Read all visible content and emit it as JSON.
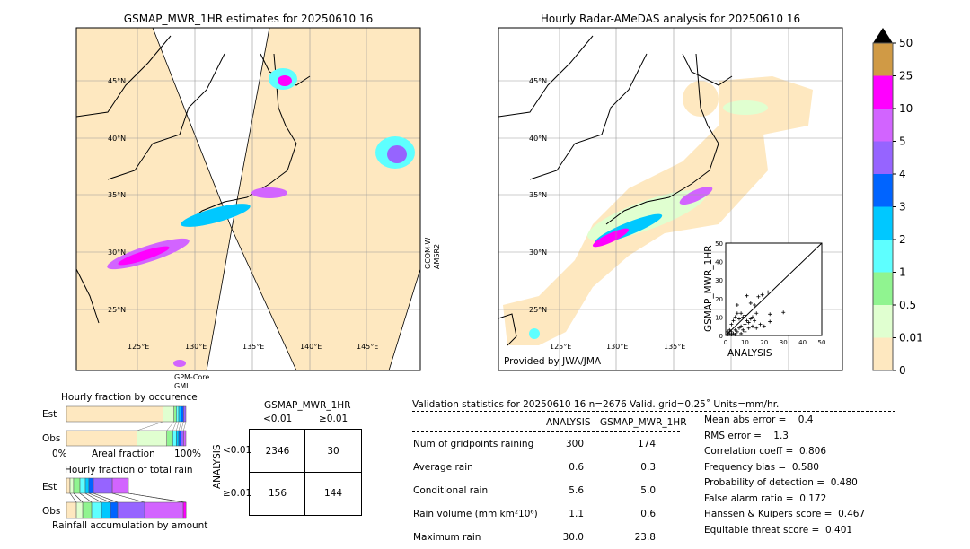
{
  "left_map": {
    "title": "GSMAP_MWR_1HR estimates for 20250610 16",
    "lat_labels": [
      "45°N",
      "40°N",
      "35°N",
      "30°N",
      "25°N"
    ],
    "lon_labels": [
      "125°E",
      "130°E",
      "135°E",
      "140°E",
      "145°E"
    ],
    "swath_label_bottom_1": "GPM-Core",
    "swath_label_bottom_2": "GMI",
    "swath_label_right_1": "GCOM-W",
    "swath_label_right_2": "AMSR2"
  },
  "right_map": {
    "title": "Hourly Radar-AMeDAS analysis for 20250610 16",
    "lat_labels": [
      "45°N",
      "40°N",
      "35°N",
      "30°N",
      "25°N"
    ],
    "lon_labels": [
      "125°E",
      "130°E",
      "135°E"
    ],
    "credit": "Provided by JWA/JMA"
  },
  "colorbar": {
    "ticks": [
      "0",
      "0.01",
      "0.5",
      "1",
      "2",
      "3",
      "4",
      "5",
      "10",
      "25",
      "50"
    ],
    "colors": [
      "#fee8c0",
      "#e0ffd0",
      "#90f490",
      "#5effff",
      "#00c8ff",
      "#0064ff",
      "#9664ff",
      "#d264ff",
      "#ff00ff",
      "#d09a45"
    ],
    "extend_color": "#000000"
  },
  "chart_data": {
    "type": "scatter",
    "xlabel": "ANALYSIS",
    "ylabel": "GSMAP_MWR_1HR",
    "xlim": [
      0,
      50
    ],
    "ylim": [
      0,
      50
    ],
    "ticks": [
      "0",
      "10",
      "20",
      "30",
      "40",
      "50"
    ],
    "points": [
      [
        1,
        0.5
      ],
      [
        2,
        1
      ],
      [
        3,
        2
      ],
      [
        4,
        1
      ],
      [
        5,
        3
      ],
      [
        6,
        2
      ],
      [
        7,
        4
      ],
      [
        8,
        5
      ],
      [
        9,
        3
      ],
      [
        10,
        6
      ],
      [
        11,
        8
      ],
      [
        12,
        7
      ],
      [
        13,
        9
      ],
      [
        14,
        10
      ],
      [
        15,
        8
      ],
      [
        16,
        12
      ],
      [
        6,
        16.5
      ],
      [
        6,
        12
      ],
      [
        8,
        12
      ],
      [
        11,
        21.5
      ],
      [
        13,
        17.5
      ],
      [
        15,
        16.5
      ],
      [
        19,
        22
      ],
      [
        22,
        23.5
      ],
      [
        23,
        11.5
      ],
      [
        23,
        7.5
      ],
      [
        30,
        12.5
      ],
      [
        18,
        6
      ],
      [
        20,
        5
      ],
      [
        12,
        4
      ],
      [
        4,
        8
      ],
      [
        5,
        10
      ],
      [
        3,
        6
      ],
      [
        2,
        3
      ],
      [
        1,
        2
      ],
      [
        7,
        9
      ],
      [
        9,
        10
      ],
      [
        10,
        11
      ],
      [
        17,
        21
      ],
      [
        14,
        5
      ],
      [
        16,
        4
      ],
      [
        8,
        1
      ],
      [
        10,
        2
      ],
      [
        3,
        0.5
      ],
      [
        5,
        0.5
      ]
    ]
  },
  "occurrence": {
    "title": "Hourly fraction by occurence",
    "rows": [
      "Est",
      "Obs"
    ],
    "xlabel": "Areal fraction",
    "x_left": "0%",
    "x_right": "100%",
    "est": [
      81,
      9,
      2,
      2,
      2,
      2,
      2
    ],
    "obs": [
      59,
      25,
      5,
      3,
      2,
      2,
      2,
      2
    ]
  },
  "total_rain": {
    "title": "Hourly fraction of total rain",
    "rows": [
      "Est",
      "Obs"
    ],
    "xlabel": "Rainfall accumulation by amount",
    "est": [
      3,
      3,
      5.3,
      4.5,
      3,
      3.8,
      15.8,
      13.5,
      0
    ],
    "obs": [
      8.3,
      5.3,
      7.5,
      8.3,
      7.5,
      6,
      22.6,
      32.3,
      2.3
    ]
  },
  "contingency": {
    "title": "GSMAP_MWR_1HR",
    "col_labels": [
      "<0.01",
      "≥0.01"
    ],
    "row_title": "ANALYSIS",
    "row_labels": [
      "<0.01",
      "≥0.01"
    ],
    "cells": [
      [
        "2346",
        "30"
      ],
      [
        "156",
        "144"
      ]
    ]
  },
  "validation": {
    "header": "Validation statistics for 20250610 16  n=2676 Valid. grid=0.25˚ Units=mm/hr.",
    "col1": "ANALYSIS",
    "col2": "GSMAP_MWR_1HR",
    "rows": [
      {
        "label": "Num of gridpoints raining",
        "a": "300",
        "b": "174"
      },
      {
        "label": "Average rain",
        "a": "0.6",
        "b": "0.3"
      },
      {
        "label": "Conditional rain",
        "a": "5.6",
        "b": "5.0"
      },
      {
        "label": "Rain volume (mm km²10⁶)",
        "a": "1.1",
        "b": "0.6"
      },
      {
        "label": "Maximum rain",
        "a": "30.0",
        "b": "23.8"
      }
    ],
    "scores": [
      "Mean abs error =    0.4",
      "RMS error =    1.3",
      "Correlation coeff =  0.806",
      "Frequency bias =  0.580",
      "Probability of detection =  0.480",
      "False alarm ratio =  0.172",
      "Hanssen & Kuipers score =  0.467",
      "Equitable threat score =  0.401"
    ]
  }
}
